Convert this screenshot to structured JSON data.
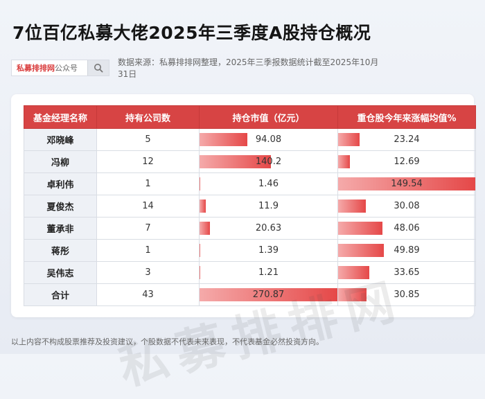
{
  "title": "7位百亿私募大佬2025年三季度A股持仓概况",
  "search": {
    "brand_red": "私募排排网",
    "brand_grey": "公众号",
    "icon": "search-icon"
  },
  "source": "数据来源：私募排排网整理，2025年三季报数据统计截至2025年10月31日",
  "table": {
    "headers": [
      "基金经理名称",
      "持有公司数",
      "持仓市值（亿元）",
      "重仓股今年来涨幅均值%"
    ],
    "rows": [
      {
        "name": "邓晓峰",
        "count": "5",
        "value": "94.08",
        "gain": "23.24"
      },
      {
        "name": "冯柳",
        "count": "12",
        "value": "140.2",
        "gain": "12.69"
      },
      {
        "name": "卓利伟",
        "count": "1",
        "value": "1.46",
        "gain": "149.54"
      },
      {
        "name": "夏俊杰",
        "count": "14",
        "value": "11.9",
        "gain": "30.08"
      },
      {
        "name": "董承非",
        "count": "7",
        "value": "20.63",
        "gain": "48.06"
      },
      {
        "name": "蒋彤",
        "count": "1",
        "value": "1.39",
        "gain": "49.89"
      },
      {
        "name": "吴伟志",
        "count": "3",
        "value": "1.21",
        "gain": "33.65"
      },
      {
        "name": "合计",
        "count": "43",
        "value": "270.87",
        "gain": "30.85"
      }
    ],
    "value_max": 270.87,
    "gain_max": 149.54
  },
  "watermark": "私募排排网",
  "disclaimer": "以上内容不构成股票推荐及投资建议，个股数据不代表未来表现，不代表基金必然投资方向。",
  "colors": {
    "header": "#d74444",
    "bar": "#e54848",
    "name_bg": "#eef1f6"
  }
}
